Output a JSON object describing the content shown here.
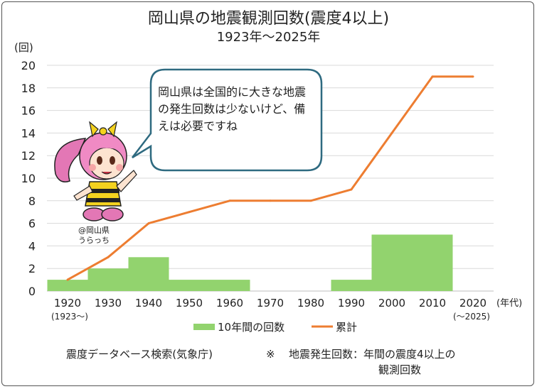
{
  "chart_data": {
    "type": "bar+line",
    "title": "岡山県の地震観測回数(震度4以上)",
    "subtitle": "1923年〜2025年",
    "ylabel": "(回)",
    "xlabel": "(年代)",
    "ylim": [
      0,
      20
    ],
    "yticks": [
      "0",
      "2",
      "4",
      "6",
      "8",
      "10",
      "12",
      "14",
      "16",
      "18",
      "20"
    ],
    "categories": [
      "1920",
      "1930",
      "1940",
      "1950",
      "1960",
      "1970",
      "1980",
      "1990",
      "2000",
      "2010",
      "2020"
    ],
    "category_notes": {
      "first": "(1923〜)",
      "last": "(〜2025)"
    },
    "series": [
      {
        "name": "10年間の回数",
        "type": "bar",
        "color": "#92d36e",
        "values": [
          1,
          2,
          3,
          1,
          1,
          0,
          0,
          1,
          5,
          5,
          null
        ]
      },
      {
        "name": "累計",
        "type": "line",
        "color": "#ed7d31",
        "values": [
          1,
          3,
          6,
          7,
          8,
          8,
          8,
          9,
          14,
          19,
          19
        ]
      }
    ],
    "legend_position": "bottom"
  },
  "bubble_text": "岡山県は全国的に大きな地震の発生回数は少ないけど、備えは必要ですね",
  "credit": [
    "@岡山県",
    "うらっち"
  ],
  "footer": {
    "source": "震度データベース検索(気象庁)",
    "note_mark": "※",
    "note_line1": "地震発生回数：年間の震度4以上の",
    "note_line2": "観測回数"
  }
}
